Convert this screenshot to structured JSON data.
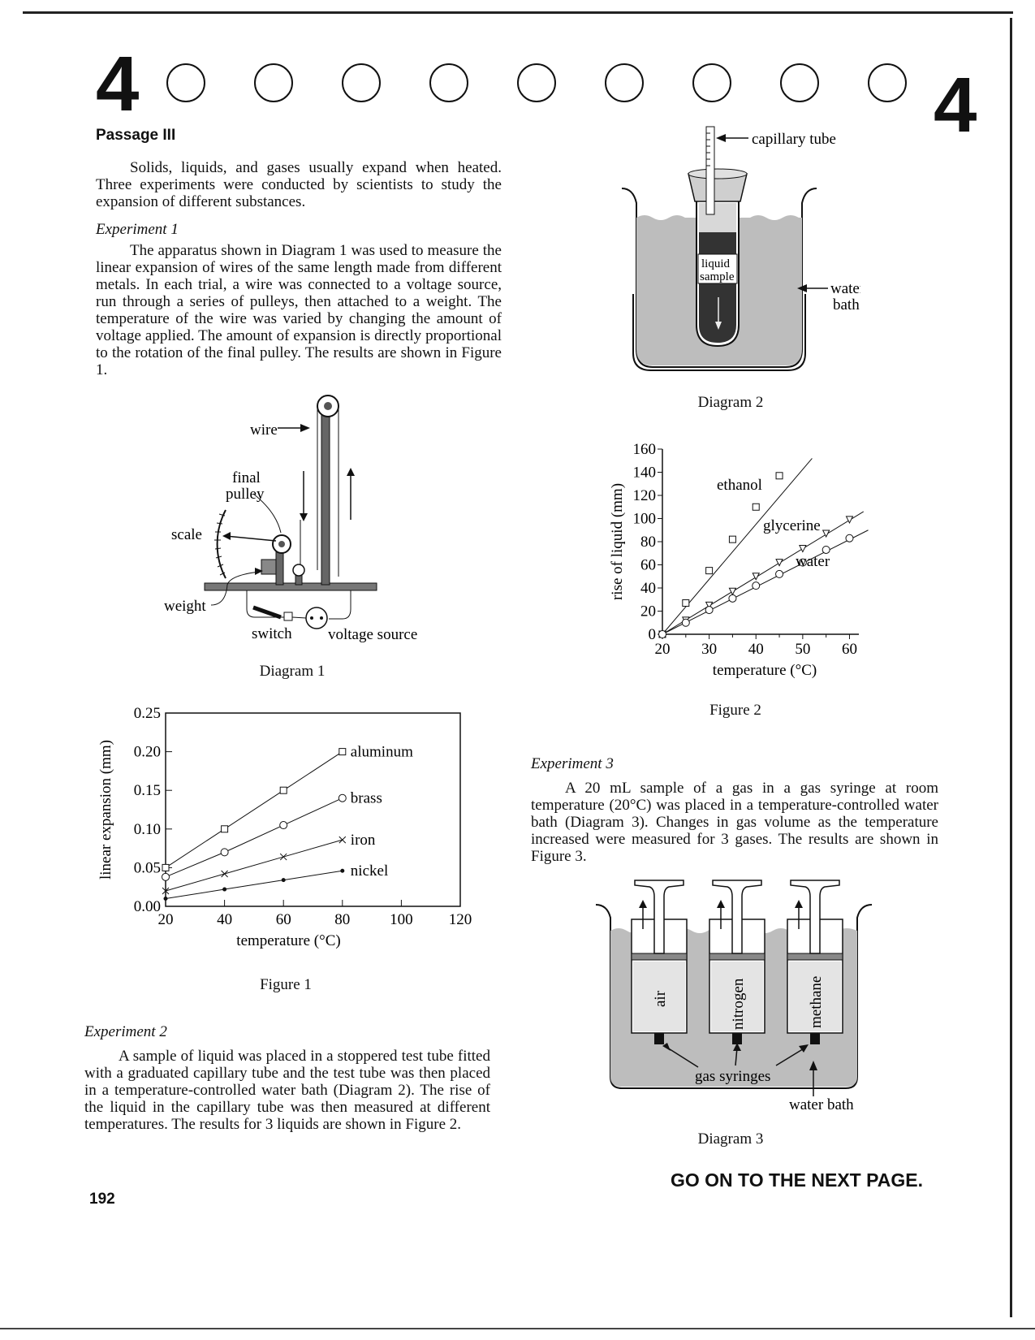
{
  "header": {
    "section_number_left": "4",
    "section_number_right": "4",
    "passage_title": "Passage III"
  },
  "intro": "Solids, liquids, and gases usually expand when heated. Three experiments were conducted by scientists to study the expansion of different substances.",
  "experiment1": {
    "heading": "Experiment 1",
    "text": "The apparatus shown in Diagram 1 was used to measure the linear expansion of wires of the same length made from different metals. In each trial, a wire was connected to a voltage source, run through a series of pulleys, then attached to a weight. The temperature of the wire was varied by changing the amount of voltage applied. The amount of expansion is directly proportional to the rotation of the final pulley. The results are shown in Figure 1."
  },
  "diagram1": {
    "caption": "Diagram 1",
    "labels": {
      "wire": "wire",
      "final_pulley_1": "final",
      "final_pulley_2": "pulley",
      "scale": "scale",
      "weight": "weight",
      "switch": "switch",
      "voltage_source": "voltage source"
    }
  },
  "diagram2": {
    "caption": "Diagram 2",
    "labels": {
      "capillary_tube": "capillary tube",
      "liquid_1": "liquid",
      "liquid_2": "sample",
      "water_1": "water",
      "water_2": "bath"
    }
  },
  "diagram3": {
    "caption": "Diagram 3",
    "labels": {
      "air": "air",
      "nitrogen": "nitrogen",
      "methane": "methane",
      "gas_syringes": "gas syringes",
      "water_bath": "water bath"
    }
  },
  "experiment2": {
    "heading": "Experiment 2",
    "text": "A sample of liquid was placed in a stoppered test tube fitted with a graduated capillary tube and the test tube was then placed in a temperature-controlled water bath (Diagram 2). The rise of the liquid in the capillary tube was then measured at different temperatures. The results for 3 liquids are shown in Figure 2."
  },
  "experiment3": {
    "heading": "Experiment 3",
    "text": "A 20 mL sample of a gas in a gas syringe at room temperature (20°C) was placed in a temperature-controlled water bath (Diagram 3). Changes in gas volume as the temperature increased were measured for 3 gases. The results are shown in Figure 3."
  },
  "footer": {
    "page_number": "192",
    "next_page": "GO ON TO THE NEXT PAGE."
  },
  "chart_data": [
    {
      "id": "figure1",
      "type": "line",
      "title": "Figure 1",
      "xlabel": "temperature (°C)",
      "ylabel": "linear expansion (mm)",
      "xlim": [
        20,
        120
      ],
      "ylim": [
        0.0,
        0.25
      ],
      "xticks": [
        20,
        40,
        60,
        80,
        100,
        120
      ],
      "yticks": [
        "0.00",
        "0.05",
        "0.10",
        "0.15",
        "0.20",
        "0.25"
      ],
      "x": [
        20,
        40,
        60,
        80
      ],
      "series": [
        {
          "name": "aluminum",
          "marker": "square",
          "values": [
            0.05,
            0.1,
            0.15,
            0.2
          ]
        },
        {
          "name": "brass",
          "marker": "circle",
          "values": [
            0.038,
            0.07,
            0.105,
            0.14
          ]
        },
        {
          "name": "iron",
          "marker": "x",
          "values": [
            0.02,
            0.042,
            0.064,
            0.086
          ]
        },
        {
          "name": "nickel",
          "marker": "dot",
          "values": [
            0.01,
            0.022,
            0.034,
            0.046
          ]
        }
      ]
    },
    {
      "id": "figure2",
      "type": "line",
      "title": "Figure 2",
      "xlabel": "temperature (°C)",
      "ylabel": "rise of liquid (mm)",
      "xlim": [
        20,
        62
      ],
      "ylim": [
        0,
        160
      ],
      "xticks": [
        20,
        30,
        40,
        50,
        60
      ],
      "yticks": [
        0,
        20,
        40,
        60,
        80,
        100,
        120,
        140,
        160
      ],
      "series": [
        {
          "name": "ethanol",
          "marker": "square",
          "x": [
            20,
            25,
            30,
            35,
            40,
            45
          ],
          "values": [
            0,
            27,
            55,
            82,
            110,
            137
          ]
        },
        {
          "name": "glycerine",
          "marker": "triangle",
          "x": [
            20,
            25,
            30,
            35,
            40,
            45,
            50,
            55,
            60
          ],
          "values": [
            0,
            12,
            25,
            37,
            50,
            62,
            74,
            87,
            99
          ]
        },
        {
          "name": "water",
          "marker": "circle",
          "x": [
            20,
            25,
            30,
            35,
            40,
            45,
            50,
            55,
            60
          ],
          "values": [
            0,
            10,
            21,
            31,
            42,
            52,
            62,
            73,
            83
          ]
        }
      ]
    }
  ]
}
